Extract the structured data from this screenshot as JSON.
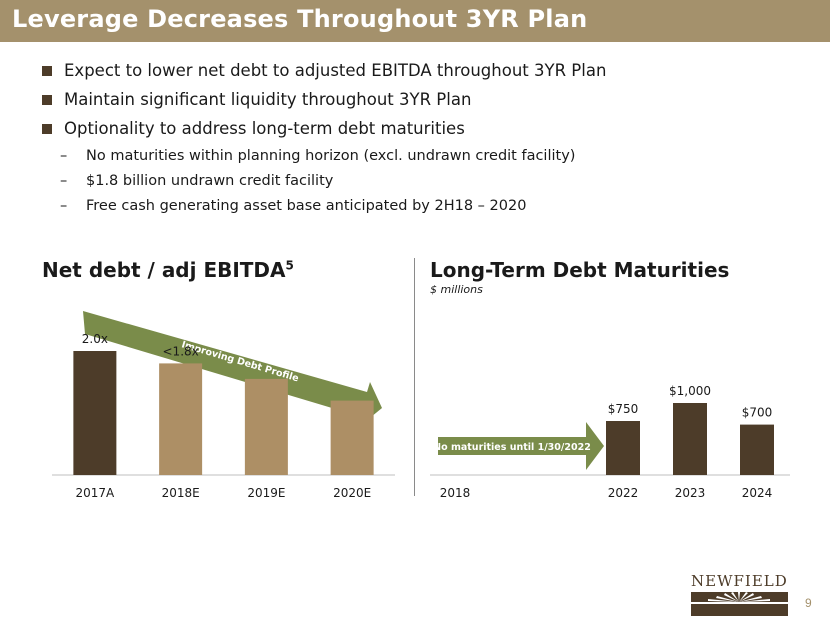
{
  "title": "Leverage Decreases Throughout 3YR Plan",
  "bullets": [
    {
      "text": "Expect to lower net debt to adjusted EBITDA throughout 3YR Plan"
    },
    {
      "text": "Maintain significant liquidity throughout 3YR Plan"
    },
    {
      "text": "Optionality to address long-term debt maturities"
    }
  ],
  "sub_bullets": [
    {
      "text": "No maturities within planning horizon (excl. undrawn credit facility)"
    },
    {
      "text": "$1.8 billion undrawn credit facility"
    },
    {
      "text": "Free cash generating asset base anticipated by 2H18 – 2020"
    }
  ],
  "dash": "–",
  "logo": "NEWFIELD",
  "page_number": "9",
  "colors": {
    "title_bar": "#a4916c",
    "dark_brown": "#4d3c29",
    "light_brown": "#ad8f65",
    "arrow_green": "#7a8c4a"
  },
  "chart_data": [
    {
      "type": "bar",
      "title": "Net debt / adj EBITDA",
      "title_superscript": "5",
      "categories": [
        "2017A",
        "2018E",
        "2019E",
        "2020E"
      ],
      "values": [
        2.0,
        1.8,
        1.55,
        1.2
      ],
      "data_labels": [
        "2.0x",
        "<1.8x",
        "",
        ""
      ],
      "ylim": [
        0,
        2.2
      ],
      "colors": [
        "#4d3c29",
        "#ad8f65",
        "#ad8f65",
        "#ad8f65"
      ],
      "annotation": "Improving Debt Profile"
    },
    {
      "type": "bar",
      "title": "Long-Term Debt Maturities",
      "subtitle": "$ millions",
      "categories": [
        "2018",
        "2022",
        "2023",
        "2024"
      ],
      "values": [
        0,
        750,
        1000,
        700
      ],
      "data_labels": [
        "",
        "$750",
        "$1,000",
        "$700"
      ],
      "ylim": [
        0,
        1300
      ],
      "colors": [
        "#4d3c29",
        "#4d3c29",
        "#4d3c29",
        "#4d3c29"
      ],
      "annotation": "No maturities until 1/30/2022"
    }
  ]
}
